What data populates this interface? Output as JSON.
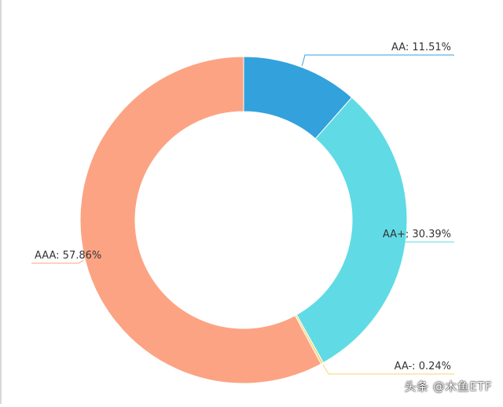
{
  "chart_data": {
    "type": "pie",
    "variant": "donut",
    "title": "",
    "slices": [
      {
        "name": "AA",
        "value": 11.51,
        "label": "AA: 11.51%",
        "color": "#33a1dc"
      },
      {
        "name": "AA+",
        "value": 30.39,
        "label": "AA+: 30.39%",
        "color": "#60dbe5"
      },
      {
        "name": "AA-",
        "value": 0.24,
        "label": "AA-: 0.24%",
        "color": "#f7d770"
      },
      {
        "name": "AAA",
        "value": 57.86,
        "label": "AAA: 57.86%",
        "color": "#fca383"
      }
    ],
    "start_angle": "12 o'clock",
    "direction": "clockwise",
    "legend": "none"
  },
  "watermark": {
    "text": "头条 @木鱼ETF"
  }
}
